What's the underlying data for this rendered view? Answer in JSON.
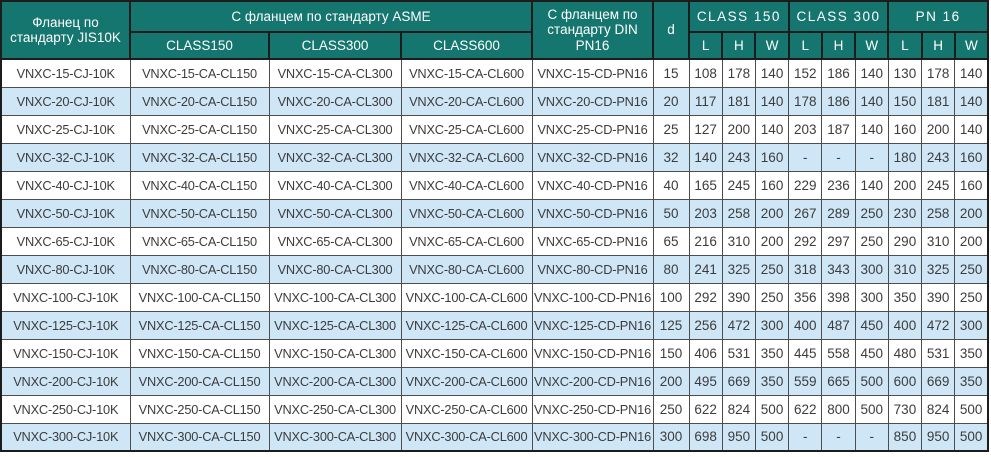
{
  "header": {
    "jis": "Фланец по стандарту JIS10K",
    "asme_group": "С фланцем по стандарту ASME",
    "asme_subs": [
      "CLASS150",
      "CLASS300",
      "CLASS600"
    ],
    "din": "С фланцем по стандарту DIN PN16",
    "d": "d",
    "dim_groups": [
      "CLASS 150",
      "CLASS 300",
      "PN 16"
    ],
    "dim_letters": [
      "L",
      "H",
      "W"
    ]
  },
  "columns": [
    "jis",
    "asme-cl150",
    "asme-cl300",
    "asme-cl600",
    "din-pn16",
    "d",
    "cl150-l",
    "cl150-h",
    "cl150-w",
    "cl300-l",
    "cl300-h",
    "cl300-w",
    "pn16-l",
    "pn16-h",
    "pn16-w"
  ],
  "rows": [
    [
      "VNXC-15-CJ-10K",
      "VNXC-15-CA-CL150",
      "VNXC-15-CA-CL300",
      "VNXC-15-CA-CL600",
      "VNXC-15-CD-PN16",
      "15",
      "108",
      "178",
      "140",
      "152",
      "186",
      "140",
      "130",
      "178",
      "140"
    ],
    [
      "VNXC-20-CJ-10K",
      "VNXC-20-CA-CL150",
      "VNXC-20-CA-CL300",
      "VNXC-20-CA-CL600",
      "VNXC-20-CD-PN16",
      "20",
      "117",
      "181",
      "140",
      "178",
      "186",
      "140",
      "150",
      "181",
      "140"
    ],
    [
      "VNXC-25-CJ-10K",
      "VNXC-25-CA-CL150",
      "VNXC-25-CA-CL300",
      "VNXC-25-CA-CL600",
      "VNXC-25-CD-PN16",
      "25",
      "127",
      "200",
      "140",
      "203",
      "187",
      "140",
      "160",
      "200",
      "140"
    ],
    [
      "VNXC-32-CJ-10K",
      "VNXC-32-CA-CL150",
      "VNXC-32-CA-CL300",
      "VNXC-32-CA-CL600",
      "VNXC-32-CD-PN16",
      "32",
      "140",
      "243",
      "160",
      "-",
      "-",
      "-",
      "180",
      "243",
      "160"
    ],
    [
      "VNXC-40-CJ-10K",
      "VNXC-40-CA-CL150",
      "VNXC-40-CA-CL300",
      "VNXC-40-CA-CL600",
      "VNXC-40-CD-PN16",
      "40",
      "165",
      "245",
      "160",
      "229",
      "236",
      "140",
      "200",
      "245",
      "160"
    ],
    [
      "VNXC-50-CJ-10K",
      "VNXC-50-CA-CL150",
      "VNXC-50-CA-CL300",
      "VNXC-50-CA-CL600",
      "VNXC-50-CD-PN16",
      "50",
      "203",
      "258",
      "200",
      "267",
      "289",
      "250",
      "230",
      "258",
      "200"
    ],
    [
      "VNXC-65-CJ-10K",
      "VNXC-65-CA-CL150",
      "VNXC-65-CA-CL300",
      "VNXC-65-CA-CL600",
      "VNXC-65-CD-PN16",
      "65",
      "216",
      "310",
      "200",
      "292",
      "297",
      "250",
      "290",
      "310",
      "200"
    ],
    [
      "VNXC-80-CJ-10K",
      "VNXC-80-CA-CL150",
      "VNXC-80-CA-CL300",
      "VNXC-80-CA-CL600",
      "VNXC-80-CD-PN16",
      "80",
      "241",
      "325",
      "250",
      "318",
      "343",
      "300",
      "310",
      "325",
      "250"
    ],
    [
      "VNXC-100-CJ-10K",
      "VNXC-100-CA-CL150",
      "VNXC-100-CA-CL300",
      "VNXC-100-CA-CL600",
      "VNXC-100-CD-PN16",
      "100",
      "292",
      "390",
      "250",
      "356",
      "398",
      "300",
      "350",
      "390",
      "250"
    ],
    [
      "VNXC-125-CJ-10K",
      "VNXC-125-CA-CL150",
      "VNXC-125-CA-CL300",
      "VNXC-125-CA-CL600",
      "VNXC-125-CD-PN16",
      "125",
      "256",
      "472",
      "300",
      "400",
      "487",
      "450",
      "400",
      "472",
      "300"
    ],
    [
      "VNXC-150-CJ-10K",
      "VNXC-150-CA-CL150",
      "VNXC-150-CA-CL300",
      "VNXC-150-CA-CL600",
      "VNXC-150-CD-PN16",
      "150",
      "406",
      "531",
      "350",
      "445",
      "558",
      "450",
      "480",
      "531",
      "350"
    ],
    [
      "VNXC-200-CJ-10K",
      "VNXC-200-CA-CL150",
      "VNXC-200-CA-CL300",
      "VNXC-200-CA-CL600",
      "VNXC-200-CD-PN16",
      "200",
      "495",
      "669",
      "350",
      "559",
      "665",
      "500",
      "600",
      "669",
      "350"
    ],
    [
      "VNXC-250-CJ-10K",
      "VNXC-250-CA-CL150",
      "VNXC-250-CA-CL300",
      "VNXC-250-CA-CL600",
      "VNXC-250-CD-PN16",
      "250",
      "622",
      "824",
      "500",
      "622",
      "800",
      "500",
      "730",
      "824",
      "500"
    ],
    [
      "VNXC-300-CJ-10K",
      "VNXC-300-CA-CL150",
      "VNXC-300-CA-CL300",
      "VNXC-300-CA-CL600",
      "VNXC-300-CD-PN16",
      "300",
      "698",
      "950",
      "500",
      "-",
      "-",
      "-",
      "850",
      "950",
      "500"
    ]
  ],
  "colors": {
    "header_bg": "#14766E",
    "header_text": "#FFFFFF",
    "row_even_bg": "#FFFFFF",
    "row_odd_bg": "#CFE6F7",
    "grid_border": "#4D4D4D",
    "header_border": "#1C1C1C",
    "cell_text": "#3C3C3C"
  }
}
